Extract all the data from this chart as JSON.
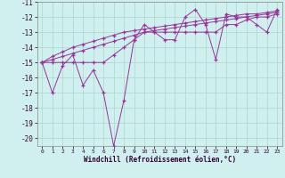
{
  "xlabel": "Windchill (Refroidissement éolien,°C)",
  "background_color": "#cff0ee",
  "grid_color": "#aad8cc",
  "line_color": "#993399",
  "x_values": [
    0,
    1,
    2,
    3,
    4,
    5,
    6,
    7,
    8,
    9,
    10,
    11,
    12,
    13,
    14,
    15,
    16,
    17,
    18,
    19,
    20,
    21,
    22,
    23
  ],
  "series": [
    [
      -15.0,
      -17.0,
      -15.2,
      -14.5,
      -16.5,
      -15.5,
      -17.0,
      -20.5,
      -17.5,
      -13.5,
      -12.5,
      -13.0,
      -13.5,
      -13.5,
      -12.0,
      -11.5,
      -12.5,
      -14.8,
      -11.8,
      -12.0,
      -12.0,
      -12.5,
      -13.0,
      -11.5
    ],
    [
      -15.0,
      -15.0,
      -15.0,
      -15.0,
      -15.0,
      -15.0,
      -15.0,
      -14.5,
      -14.0,
      -13.5,
      -13.0,
      -13.0,
      -13.0,
      -13.0,
      -13.0,
      -13.0,
      -13.0,
      -13.0,
      -12.5,
      -12.5,
      -12.2,
      -12.0,
      -12.0,
      -11.8
    ],
    [
      -15.0,
      -14.8,
      -14.6,
      -14.4,
      -14.2,
      -14.0,
      -13.8,
      -13.6,
      -13.4,
      -13.2,
      -13.0,
      -12.9,
      -12.8,
      -12.7,
      -12.6,
      -12.5,
      -12.4,
      -12.3,
      -12.2,
      -12.1,
      -12.0,
      -11.9,
      -11.8,
      -11.7
    ],
    [
      -15.0,
      -14.6,
      -14.3,
      -14.0,
      -13.8,
      -13.6,
      -13.4,
      -13.2,
      -13.0,
      -12.9,
      -12.8,
      -12.7,
      -12.6,
      -12.5,
      -12.4,
      -12.3,
      -12.2,
      -12.1,
      -12.0,
      -11.9,
      -11.8,
      -11.8,
      -11.7,
      -11.6
    ]
  ],
  "ylim": [
    -20.5,
    -11.0
  ],
  "xlim": [
    -0.5,
    23.5
  ],
  "yticks": [
    -20,
    -19,
    -18,
    -17,
    -16,
    -15,
    -14,
    -13,
    -12,
    -11
  ],
  "xticks": [
    0,
    1,
    2,
    3,
    4,
    5,
    6,
    7,
    8,
    9,
    10,
    11,
    12,
    13,
    14,
    15,
    16,
    17,
    18,
    19,
    20,
    21,
    22,
    23
  ],
  "marker": "+",
  "linewidth": 0.7,
  "markersize": 3.0
}
